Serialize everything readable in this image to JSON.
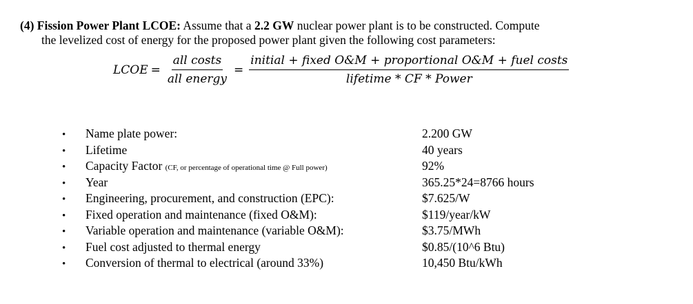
{
  "problem": {
    "number": "(4)",
    "title": "Fission Power Plant LCOE:",
    "text_before_power": " Assume that a ",
    "power": "2.2 GW",
    "text_after_power": " nuclear power plant is to be constructed. Compute",
    "line2": "the levelized cost of energy for the proposed power plant given the following cost parameters:"
  },
  "formula": {
    "lhs": "LCOE",
    "eq1": "=",
    "frac1_num": "all costs",
    "frac1_den": "all energy",
    "eq2": "=",
    "frac2_num": "initial + fixed O&M + proportional O&M + fuel costs",
    "frac2_den": "lifetime * CF * Power"
  },
  "bullet_glyph": "•",
  "parameters": [
    {
      "name": "Name plate power:",
      "note": "",
      "value": "2.200 GW"
    },
    {
      "name": "Lifetime",
      "note": "",
      "value": "40 years"
    },
    {
      "name": "Capacity Factor ",
      "note": "(CF, or percentage of operational time @ Full power)",
      "value": "92%"
    },
    {
      "name": "Year",
      "note": "",
      "value": "365.25*24=8766 hours"
    },
    {
      "name": "Engineering, procurement, and construction (EPC):",
      "note": "",
      "value": "$7.625/W"
    },
    {
      "name": "Fixed operation and maintenance (fixed O&M):",
      "note": "",
      "value": "$119/year/kW"
    },
    {
      "name": "Variable operation and maintenance (variable O&M):",
      "note": "",
      "value": "$3.75/MWh"
    },
    {
      "name": "Fuel cost adjusted to thermal energy",
      "note": "",
      "value": "$0.85/(10^6 Btu)"
    },
    {
      "name": "Conversion of thermal to electrical (around 33%)",
      "note": "",
      "value": "10,450 Btu/kWh"
    }
  ]
}
